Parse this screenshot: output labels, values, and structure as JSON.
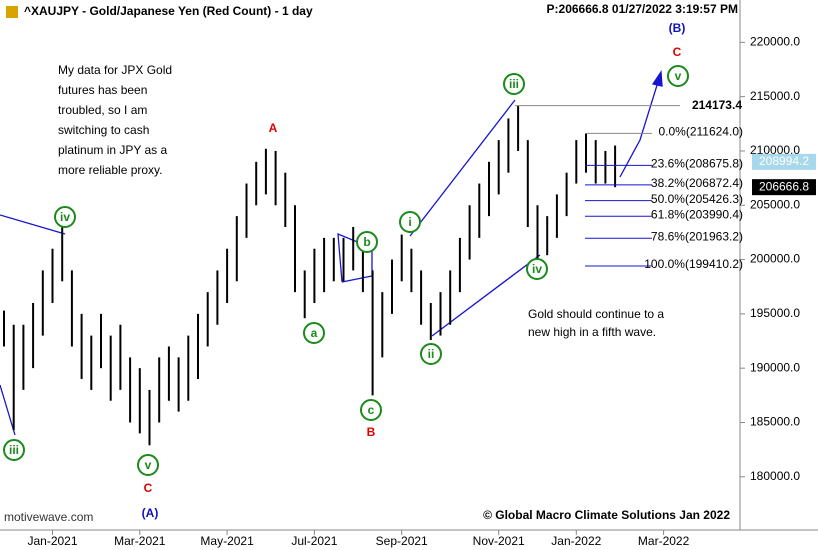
{
  "chart_data": {
    "type": "hl_bars",
    "title": "^XAUJPY - Gold/Japanese Yen (Red Count) - 1 day",
    "status": "P:206666.8  01/27/2022 3:19:57 PM",
    "categories": [
      null,
      null,
      null,
      null,
      null,
      "Jan-2021",
      null,
      null,
      null,
      null,
      null,
      null,
      null,
      null,
      "Mar-2021",
      null,
      null,
      null,
      null,
      null,
      null,
      null,
      null,
      "May-2021",
      null,
      null,
      null,
      null,
      null,
      null,
      null,
      null,
      "Jul-2021",
      null,
      null,
      null,
      null,
      null,
      null,
      null,
      null,
      "Sep-2021",
      null,
      null,
      null,
      null,
      null,
      null,
      null,
      null,
      null,
      "Nov-2021",
      null,
      null,
      null,
      null,
      null,
      null,
      null,
      "Jan-2022",
      null,
      null,
      null,
      null,
      null,
      null,
      null,
      null,
      "Mar-2022",
      null,
      null,
      null,
      null,
      null,
      null,
      null
    ],
    "highs": [
      195300,
      194000,
      194000,
      196000,
      199000,
      201000,
      203000,
      199000,
      195000,
      193000,
      195000,
      193000,
      194000,
      191000,
      190000,
      188000,
      191000,
      192000,
      191000,
      193000,
      195000,
      197000,
      199000,
      201000,
      204000,
      207000,
      209000,
      210200,
      210000,
      208000,
      205000,
      199000,
      201000,
      202000,
      202000,
      202000,
      203000,
      202000,
      199000,
      197000,
      200000,
      202300,
      201000,
      199000,
      196000,
      197000,
      199000,
      202000,
      205000,
      207000,
      209000,
      211000,
      213000,
      214173.4,
      211000,
      205000,
      204000,
      206000,
      208000,
      211000,
      211600,
      211000,
      210000,
      210500,
      null,
      null,
      null,
      null,
      null,
      null,
      null,
      null,
      null,
      null,
      null,
      null
    ],
    "lows": [
      192000,
      184300,
      188000,
      190000,
      193000,
      196000,
      198000,
      192000,
      189000,
      188000,
      190000,
      187000,
      188000,
      185000,
      184000,
      182900,
      185000,
      187000,
      186000,
      187000,
      189000,
      192000,
      194000,
      196000,
      198000,
      202000,
      205000,
      206000,
      205000,
      203000,
      197000,
      194600,
      196000,
      197000,
      198000,
      198000,
      199000,
      197000,
      187500,
      191000,
      195000,
      198000,
      197000,
      194000,
      192600,
      193000,
      194000,
      197000,
      200000,
      202000,
      204000,
      206000,
      208000,
      210000,
      203000,
      200000,
      200400,
      202000,
      204000,
      207000,
      208000,
      207000,
      207000,
      206666.8,
      null,
      null,
      null,
      null,
      null,
      null,
      null,
      null,
      null,
      null,
      null,
      null
    ],
    "color": "#000000",
    "ylim": [
      175100,
      223900
    ],
    "yticks": [
      {
        "value": 180000,
        "label": "180000.0"
      },
      {
        "value": 185000,
        "label": "185000.0"
      },
      {
        "value": 190000,
        "label": "190000.0"
      },
      {
        "value": 195000,
        "label": "195000.0"
      },
      {
        "value": 200000,
        "label": "200000.0"
      },
      {
        "value": 205000,
        "label": "205000.0"
      },
      {
        "value": 210000,
        "label": "210000.0"
      },
      {
        "value": 215000,
        "label": "215000.0"
      },
      {
        "value": 220000,
        "label": "220000.0"
      }
    ],
    "price_tags": [
      {
        "value": 208994.2,
        "label": "208994.2",
        "color": "#a8d8ec"
      },
      {
        "value": 206666.8,
        "label": "206666.8",
        "color": "#000000"
      }
    ],
    "level": {
      "value": 214173.4,
      "label": "214173.4"
    },
    "fib_levels": [
      {
        "value": 211624.0,
        "label": "0.0%(211624.0)"
      },
      {
        "value": 208675.8,
        "label": "23.6%(208675.8)"
      },
      {
        "value": 206872.4,
        "label": "38.2%(206872.4)"
      },
      {
        "value": 205426.3,
        "label": "50.0%(205426.3)"
      },
      {
        "value": 203990.4,
        "label": "61.8%(203990.4)"
      },
      {
        "value": 201963.2,
        "label": "78.6%(201963.2)"
      },
      {
        "value": 199410.2,
        "label": "100.0%(199410.2)"
      }
    ],
    "wave_labels": [
      "iii",
      "iv",
      "v",
      "a",
      "b",
      "c",
      "i",
      "ii",
      "iii",
      "iv",
      "v"
    ],
    "red_labels": [
      "C",
      "A",
      "B",
      "C"
    ],
    "blue_labels": [
      "(A)",
      "(B)"
    ],
    "note_left": [
      "My data for JPX Gold",
      "futures has been",
      "troubled, so I am",
      "switching to cash",
      "platinum in JPY as a",
      "more reliable proxy."
    ],
    "note_right": [
      "Gold should continue to a",
      "new high in a fifth wave."
    ],
    "copyright": "© Global Macro Climate Solutions Jan 2022",
    "watermark": "motivewave.com"
  }
}
